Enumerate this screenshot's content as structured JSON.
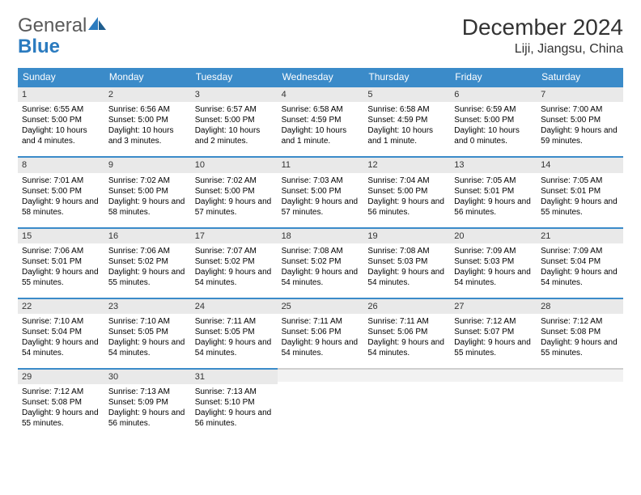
{
  "brand": {
    "part1": "General",
    "part2": "Blue"
  },
  "title": "December 2024",
  "location": "Liji, Jiangsu, China",
  "colors": {
    "header_bg": "#3b8bc9",
    "header_text": "#ffffff",
    "daynum_bg": "#e9e9e9",
    "daynum_border": "#3b8bc9",
    "empty_bg": "#f2f2f2",
    "empty_border": "#cfcfcf",
    "page_bg": "#ffffff",
    "text": "#000000",
    "brand_gray": "#5a5a5a",
    "brand_blue": "#2b7bbf"
  },
  "typography": {
    "title_fontsize": 28,
    "location_fontsize": 16,
    "dayhead_fontsize": 12,
    "daynum_fontsize": 11,
    "body_fontsize": 10
  },
  "day_headers": [
    "Sunday",
    "Monday",
    "Tuesday",
    "Wednesday",
    "Thursday",
    "Friday",
    "Saturday"
  ],
  "weeks": [
    [
      {
        "n": "1",
        "sunrise": "Sunrise: 6:55 AM",
        "sunset": "Sunset: 5:00 PM",
        "daylight": "Daylight: 10 hours and 4 minutes."
      },
      {
        "n": "2",
        "sunrise": "Sunrise: 6:56 AM",
        "sunset": "Sunset: 5:00 PM",
        "daylight": "Daylight: 10 hours and 3 minutes."
      },
      {
        "n": "3",
        "sunrise": "Sunrise: 6:57 AM",
        "sunset": "Sunset: 5:00 PM",
        "daylight": "Daylight: 10 hours and 2 minutes."
      },
      {
        "n": "4",
        "sunrise": "Sunrise: 6:58 AM",
        "sunset": "Sunset: 4:59 PM",
        "daylight": "Daylight: 10 hours and 1 minute."
      },
      {
        "n": "5",
        "sunrise": "Sunrise: 6:58 AM",
        "sunset": "Sunset: 4:59 PM",
        "daylight": "Daylight: 10 hours and 1 minute."
      },
      {
        "n": "6",
        "sunrise": "Sunrise: 6:59 AM",
        "sunset": "Sunset: 5:00 PM",
        "daylight": "Daylight: 10 hours and 0 minutes."
      },
      {
        "n": "7",
        "sunrise": "Sunrise: 7:00 AM",
        "sunset": "Sunset: 5:00 PM",
        "daylight": "Daylight: 9 hours and 59 minutes."
      }
    ],
    [
      {
        "n": "8",
        "sunrise": "Sunrise: 7:01 AM",
        "sunset": "Sunset: 5:00 PM",
        "daylight": "Daylight: 9 hours and 58 minutes."
      },
      {
        "n": "9",
        "sunrise": "Sunrise: 7:02 AM",
        "sunset": "Sunset: 5:00 PM",
        "daylight": "Daylight: 9 hours and 58 minutes."
      },
      {
        "n": "10",
        "sunrise": "Sunrise: 7:02 AM",
        "sunset": "Sunset: 5:00 PM",
        "daylight": "Daylight: 9 hours and 57 minutes."
      },
      {
        "n": "11",
        "sunrise": "Sunrise: 7:03 AM",
        "sunset": "Sunset: 5:00 PM",
        "daylight": "Daylight: 9 hours and 57 minutes."
      },
      {
        "n": "12",
        "sunrise": "Sunrise: 7:04 AM",
        "sunset": "Sunset: 5:00 PM",
        "daylight": "Daylight: 9 hours and 56 minutes."
      },
      {
        "n": "13",
        "sunrise": "Sunrise: 7:05 AM",
        "sunset": "Sunset: 5:01 PM",
        "daylight": "Daylight: 9 hours and 56 minutes."
      },
      {
        "n": "14",
        "sunrise": "Sunrise: 7:05 AM",
        "sunset": "Sunset: 5:01 PM",
        "daylight": "Daylight: 9 hours and 55 minutes."
      }
    ],
    [
      {
        "n": "15",
        "sunrise": "Sunrise: 7:06 AM",
        "sunset": "Sunset: 5:01 PM",
        "daylight": "Daylight: 9 hours and 55 minutes."
      },
      {
        "n": "16",
        "sunrise": "Sunrise: 7:06 AM",
        "sunset": "Sunset: 5:02 PM",
        "daylight": "Daylight: 9 hours and 55 minutes."
      },
      {
        "n": "17",
        "sunrise": "Sunrise: 7:07 AM",
        "sunset": "Sunset: 5:02 PM",
        "daylight": "Daylight: 9 hours and 54 minutes."
      },
      {
        "n": "18",
        "sunrise": "Sunrise: 7:08 AM",
        "sunset": "Sunset: 5:02 PM",
        "daylight": "Daylight: 9 hours and 54 minutes."
      },
      {
        "n": "19",
        "sunrise": "Sunrise: 7:08 AM",
        "sunset": "Sunset: 5:03 PM",
        "daylight": "Daylight: 9 hours and 54 minutes."
      },
      {
        "n": "20",
        "sunrise": "Sunrise: 7:09 AM",
        "sunset": "Sunset: 5:03 PM",
        "daylight": "Daylight: 9 hours and 54 minutes."
      },
      {
        "n": "21",
        "sunrise": "Sunrise: 7:09 AM",
        "sunset": "Sunset: 5:04 PM",
        "daylight": "Daylight: 9 hours and 54 minutes."
      }
    ],
    [
      {
        "n": "22",
        "sunrise": "Sunrise: 7:10 AM",
        "sunset": "Sunset: 5:04 PM",
        "daylight": "Daylight: 9 hours and 54 minutes."
      },
      {
        "n": "23",
        "sunrise": "Sunrise: 7:10 AM",
        "sunset": "Sunset: 5:05 PM",
        "daylight": "Daylight: 9 hours and 54 minutes."
      },
      {
        "n": "24",
        "sunrise": "Sunrise: 7:11 AM",
        "sunset": "Sunset: 5:05 PM",
        "daylight": "Daylight: 9 hours and 54 minutes."
      },
      {
        "n": "25",
        "sunrise": "Sunrise: 7:11 AM",
        "sunset": "Sunset: 5:06 PM",
        "daylight": "Daylight: 9 hours and 54 minutes."
      },
      {
        "n": "26",
        "sunrise": "Sunrise: 7:11 AM",
        "sunset": "Sunset: 5:06 PM",
        "daylight": "Daylight: 9 hours and 54 minutes."
      },
      {
        "n": "27",
        "sunrise": "Sunrise: 7:12 AM",
        "sunset": "Sunset: 5:07 PM",
        "daylight": "Daylight: 9 hours and 55 minutes."
      },
      {
        "n": "28",
        "sunrise": "Sunrise: 7:12 AM",
        "sunset": "Sunset: 5:08 PM",
        "daylight": "Daylight: 9 hours and 55 minutes."
      }
    ],
    [
      {
        "n": "29",
        "sunrise": "Sunrise: 7:12 AM",
        "sunset": "Sunset: 5:08 PM",
        "daylight": "Daylight: 9 hours and 55 minutes."
      },
      {
        "n": "30",
        "sunrise": "Sunrise: 7:13 AM",
        "sunset": "Sunset: 5:09 PM",
        "daylight": "Daylight: 9 hours and 56 minutes."
      },
      {
        "n": "31",
        "sunrise": "Sunrise: 7:13 AM",
        "sunset": "Sunset: 5:10 PM",
        "daylight": "Daylight: 9 hours and 56 minutes."
      },
      {
        "empty": true
      },
      {
        "empty": true
      },
      {
        "empty": true
      },
      {
        "empty": true
      }
    ]
  ]
}
